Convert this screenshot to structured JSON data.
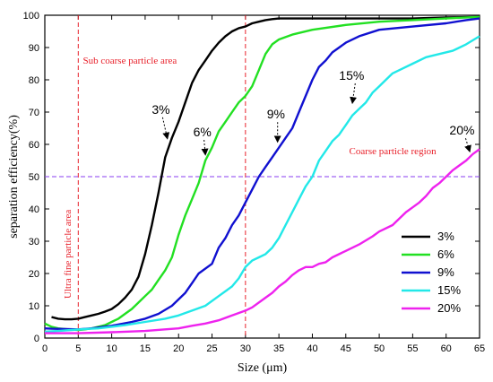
{
  "chart_data": {
    "type": "line",
    "xlabel": "Size (μm)",
    "ylabel": "separation efficiency(%)",
    "xlim": [
      0,
      65
    ],
    "ylim": [
      0,
      100
    ],
    "xticks": [
      0,
      5,
      10,
      15,
      20,
      25,
      30,
      35,
      40,
      45,
      50,
      55,
      60,
      65
    ],
    "yticks": [
      0,
      10,
      20,
      30,
      40,
      50,
      60,
      70,
      80,
      90,
      100
    ],
    "grid": false,
    "legend_position": "bottom-right",
    "reference_lines": {
      "vertical": [
        5,
        30
      ],
      "horizontal": [
        50
      ]
    },
    "series": [
      {
        "name": "3%",
        "color": "#000000",
        "points": [
          [
            1,
            6.5
          ],
          [
            2,
            6
          ],
          [
            3,
            5.8
          ],
          [
            4,
            5.8
          ],
          [
            5,
            6
          ],
          [
            6,
            6.5
          ],
          [
            7,
            7
          ],
          [
            8,
            7.5
          ],
          [
            9,
            8.2
          ],
          [
            10,
            9
          ],
          [
            11,
            10.5
          ],
          [
            12,
            12.5
          ],
          [
            13,
            15
          ],
          [
            14,
            19
          ],
          [
            15,
            26
          ],
          [
            16,
            35
          ],
          [
            17,
            45
          ],
          [
            18,
            56
          ],
          [
            19,
            62
          ],
          [
            20,
            67
          ],
          [
            21,
            73
          ],
          [
            22,
            79
          ],
          [
            23,
            83
          ],
          [
            24,
            86
          ],
          [
            25,
            89
          ],
          [
            26,
            91.5
          ],
          [
            27,
            93.5
          ],
          [
            28,
            95
          ],
          [
            29,
            96
          ],
          [
            30,
            96.5
          ],
          [
            31,
            97.5
          ],
          [
            32,
            98
          ],
          [
            33,
            98.5
          ],
          [
            34,
            98.8
          ],
          [
            35,
            99
          ],
          [
            37,
            99
          ],
          [
            40,
            99
          ],
          [
            45,
            99
          ],
          [
            50,
            99
          ],
          [
            55,
            99
          ],
          [
            60,
            99.3
          ],
          [
            65,
            99.5
          ]
        ]
      },
      {
        "name": "6%",
        "color": "#22e022",
        "points": [
          [
            0,
            4.5
          ],
          [
            1,
            3.5
          ],
          [
            2,
            3
          ],
          [
            3,
            2.8
          ],
          [
            4,
            2.6
          ],
          [
            5,
            2.5
          ],
          [
            6,
            2.7
          ],
          [
            7,
            3
          ],
          [
            8,
            3.5
          ],
          [
            9,
            4
          ],
          [
            10,
            5
          ],
          [
            11,
            6
          ],
          [
            12,
            7.5
          ],
          [
            13,
            9
          ],
          [
            14,
            11
          ],
          [
            15,
            13
          ],
          [
            16,
            15
          ],
          [
            17,
            18
          ],
          [
            18,
            21
          ],
          [
            19,
            25
          ],
          [
            20,
            32
          ],
          [
            21,
            38
          ],
          [
            22,
            43
          ],
          [
            23,
            48
          ],
          [
            24,
            55
          ],
          [
            25,
            59
          ],
          [
            26,
            64
          ],
          [
            27,
            67
          ],
          [
            28,
            70
          ],
          [
            29,
            73
          ],
          [
            30,
            75
          ],
          [
            31,
            78
          ],
          [
            32,
            83
          ],
          [
            33,
            88
          ],
          [
            34,
            91
          ],
          [
            35,
            92.5
          ],
          [
            37,
            94
          ],
          [
            40,
            95.5
          ],
          [
            45,
            97
          ],
          [
            50,
            98
          ],
          [
            55,
            98.5
          ],
          [
            60,
            99
          ],
          [
            65,
            99.5
          ]
        ]
      },
      {
        "name": "9%",
        "color": "#1010d0",
        "points": [
          [
            0,
            3
          ],
          [
            1,
            2.9
          ],
          [
            3,
            2.8
          ],
          [
            5,
            2.7
          ],
          [
            7,
            3
          ],
          [
            10,
            3.8
          ],
          [
            13,
            5
          ],
          [
            15,
            6
          ],
          [
            17,
            7.5
          ],
          [
            19,
            10
          ],
          [
            21,
            14
          ],
          [
            22,
            17
          ],
          [
            23,
            20
          ],
          [
            25,
            23
          ],
          [
            26,
            28
          ],
          [
            27,
            31
          ],
          [
            28,
            35
          ],
          [
            29,
            38
          ],
          [
            30,
            42
          ],
          [
            31,
            46
          ],
          [
            32,
            50
          ],
          [
            33,
            53
          ],
          [
            34,
            56
          ],
          [
            35,
            59
          ],
          [
            36,
            62
          ],
          [
            37,
            65
          ],
          [
            38,
            70
          ],
          [
            39,
            75
          ],
          [
            40,
            80
          ],
          [
            41,
            84
          ],
          [
            42,
            86
          ],
          [
            43,
            88.5
          ],
          [
            45,
            91.5
          ],
          [
            47,
            93.5
          ],
          [
            50,
            95.5
          ],
          [
            55,
            96.5
          ],
          [
            60,
            97.5
          ],
          [
            63,
            98.5
          ],
          [
            65,
            99
          ]
        ]
      },
      {
        "name": "15%",
        "color": "#22e8e8",
        "points": [
          [
            0,
            2
          ],
          [
            2,
            2.2
          ],
          [
            4,
            2.5
          ],
          [
            6,
            2.8
          ],
          [
            8,
            3
          ],
          [
            10,
            3.5
          ],
          [
            12,
            4
          ],
          [
            15,
            5
          ],
          [
            18,
            6
          ],
          [
            20,
            7
          ],
          [
            22,
            8.5
          ],
          [
            24,
            10
          ],
          [
            26,
            13
          ],
          [
            28,
            16
          ],
          [
            29,
            18.5
          ],
          [
            30,
            22
          ],
          [
            31,
            24
          ],
          [
            32,
            25
          ],
          [
            33,
            26
          ],
          [
            34,
            28
          ],
          [
            35,
            31
          ],
          [
            36,
            35
          ],
          [
            37,
            39
          ],
          [
            38,
            43
          ],
          [
            39,
            47
          ],
          [
            40,
            50
          ],
          [
            41,
            55
          ],
          [
            42,
            58
          ],
          [
            43,
            61
          ],
          [
            44,
            63
          ],
          [
            45,
            66
          ],
          [
            46,
            69
          ],
          [
            47,
            71
          ],
          [
            48,
            73
          ],
          [
            49,
            76
          ],
          [
            50,
            78
          ],
          [
            51,
            80
          ],
          [
            52,
            82
          ],
          [
            53,
            83
          ],
          [
            55,
            85
          ],
          [
            57,
            87
          ],
          [
            59,
            88
          ],
          [
            61,
            89
          ],
          [
            63,
            91
          ],
          [
            65,
            93.5
          ]
        ]
      },
      {
        "name": "20%",
        "color": "#ee22ee",
        "points": [
          [
            0,
            1.5
          ],
          [
            5,
            1.5
          ],
          [
            10,
            1.8
          ],
          [
            15,
            2.2
          ],
          [
            18,
            2.7
          ],
          [
            20,
            3
          ],
          [
            22,
            3.8
          ],
          [
            24,
            4.5
          ],
          [
            26,
            5.5
          ],
          [
            28,
            7
          ],
          [
            30,
            8.5
          ],
          [
            31,
            9.5
          ],
          [
            32,
            11
          ],
          [
            33,
            12.5
          ],
          [
            34,
            14
          ],
          [
            35,
            16
          ],
          [
            36,
            17.5
          ],
          [
            37,
            19.5
          ],
          [
            38,
            21
          ],
          [
            39,
            22
          ],
          [
            40,
            22
          ],
          [
            41,
            23
          ],
          [
            42,
            23.5
          ],
          [
            43,
            25
          ],
          [
            45,
            27
          ],
          [
            47,
            29
          ],
          [
            49,
            31.5
          ],
          [
            50,
            33
          ],
          [
            52,
            35
          ],
          [
            53,
            37
          ],
          [
            54,
            39
          ],
          [
            55,
            40.5
          ],
          [
            56,
            42
          ],
          [
            57,
            44
          ],
          [
            58,
            46.5
          ],
          [
            59,
            48
          ],
          [
            60,
            50
          ],
          [
            61,
            52
          ],
          [
            62,
            53.5
          ],
          [
            63,
            55
          ],
          [
            64,
            57
          ],
          [
            65,
            58.5
          ]
        ]
      }
    ],
    "annotations": [
      {
        "id": "sub-coarse",
        "text": "Sub coarse particle area",
        "x": 5.7,
        "y": 85,
        "color": "#e8202a"
      },
      {
        "id": "coarse",
        "text": "Coarse particle region",
        "x": 45.5,
        "y": 57,
        "color": "#e8202a"
      },
      {
        "id": "ultra-fine",
        "text": "Ultra fine particle area",
        "x": 3.9,
        "y": 26,
        "color": "#e8202a",
        "rotate": -90
      },
      {
        "id": "lbl-3",
        "text": "3%",
        "x": 16,
        "y": 69.5,
        "arrow_to": [
          18.3,
          62
        ],
        "color": "#000000"
      },
      {
        "id": "lbl-6",
        "text": "6%",
        "x": 22.2,
        "y": 62.5,
        "arrow_to": [
          24,
          57
        ],
        "color": "#000000"
      },
      {
        "id": "lbl-9",
        "text": "9%",
        "x": 33.2,
        "y": 68,
        "arrow_to": [
          34.8,
          61
        ],
        "color": "#000000"
      },
      {
        "id": "lbl-15",
        "text": "15%",
        "x": 44,
        "y": 80,
        "arrow_to": [
          46,
          73
        ],
        "color": "#000000"
      },
      {
        "id": "lbl-20",
        "text": "20%",
        "x": 60.5,
        "y": 63,
        "arrow_to": [
          63.5,
          58
        ],
        "color": "#000000"
      }
    ]
  }
}
